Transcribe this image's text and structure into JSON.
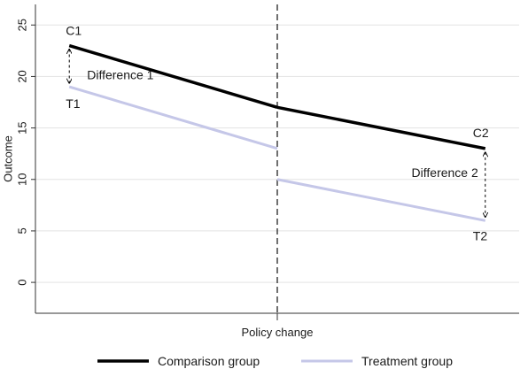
{
  "chart_data": {
    "type": "line",
    "ylabel": "Outcome",
    "xlabel": "Policy change",
    "xlim": [
      0,
      1
    ],
    "ylim": [
      -3,
      27
    ],
    "yticks": [
      0,
      5,
      10,
      15,
      20,
      25
    ],
    "grid": true,
    "policy_change_x": 0.5,
    "legend_position": "bottom",
    "series": [
      {
        "name": "Comparison group",
        "color": "#000000",
        "segments": [
          {
            "x": [
              0.07,
              0.5
            ],
            "y": [
              23,
              17
            ]
          },
          {
            "x": [
              0.5,
              0.93
            ],
            "y": [
              17,
              13
            ]
          }
        ]
      },
      {
        "name": "Treatment group",
        "color": "#c5c7e8",
        "segments": [
          {
            "x": [
              0.07,
              0.5
            ],
            "y": [
              19,
              13
            ]
          },
          {
            "x": [
              0.5,
              0.93
            ],
            "y": [
              10,
              6
            ]
          }
        ]
      }
    ],
    "annotations": [
      {
        "text": "C1",
        "x": 0.07,
        "y": 23
      },
      {
        "text": "T1",
        "x": 0.07,
        "y": 19
      },
      {
        "text": "C2",
        "x": 0.93,
        "y": 13
      },
      {
        "text": "T2",
        "x": 0.93,
        "y": 6
      },
      {
        "text": "Difference 1",
        "x": 0.07,
        "y": 20
      },
      {
        "text": "Difference 2",
        "x": 0.93,
        "y": 10.5
      }
    ],
    "difference_arrows": [
      {
        "x": 0.07,
        "y_from": 23,
        "y_to": 19
      },
      {
        "x": 0.93,
        "y_from": 13,
        "y_to": 6
      }
    ]
  }
}
